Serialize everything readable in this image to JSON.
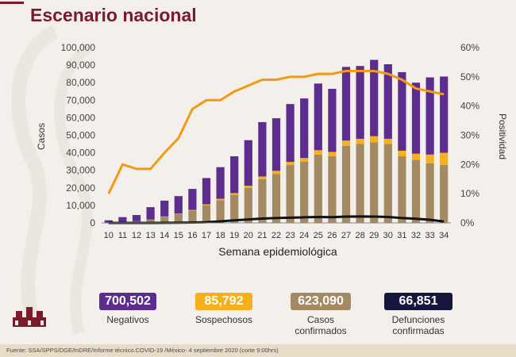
{
  "title": "Escenario nacional",
  "chart_data": {
    "type": "bar",
    "xlabel": "Semana epidemiológica",
    "ylabel_left": "Casos",
    "ylabel_right": "Positividad",
    "categories": [
      "10",
      "11",
      "12",
      "13",
      "14",
      "15",
      "16",
      "17",
      "18",
      "19",
      "20",
      "21",
      "22",
      "23",
      "24",
      "25",
      "26",
      "27",
      "28",
      "29",
      "30",
      "31",
      "32",
      "33",
      "34"
    ],
    "ylim": [
      0,
      100000
    ],
    "y2lim": [
      0,
      60
    ],
    "yticks": [
      "0",
      "10,000",
      "20,000",
      "30,000",
      "40,000",
      "50,000",
      "60,000",
      "70,000",
      "80,000",
      "90,000",
      "100,000"
    ],
    "y2ticks": [
      "0%",
      "10%",
      "20%",
      "30%",
      "40%",
      "50%",
      "60%"
    ],
    "series": [
      {
        "name": "Casos confirmados",
        "color": "#a38a63",
        "values": [
          200,
          500,
          1000,
          2000,
          3500,
          5000,
          7000,
          10000,
          13000,
          16000,
          20000,
          25000,
          28000,
          33000,
          35000,
          39000,
          38000,
          44000,
          45000,
          46000,
          45000,
          38000,
          36000,
          34000,
          33000
        ]
      },
      {
        "name": "Sospechosos",
        "color": "#f5b01c",
        "values": [
          0,
          0,
          0,
          0,
          200,
          300,
          400,
          600,
          800,
          1000,
          1200,
          1500,
          1700,
          1800,
          2000,
          2500,
          2500,
          3000,
          3000,
          3500,
          3000,
          3200,
          3500,
          5000,
          7000
        ]
      },
      {
        "name": "Negativos",
        "color": "#5c2c8e",
        "values": [
          1300,
          2800,
          3500,
          7000,
          9000,
          10000,
          12000,
          15000,
          18000,
          21000,
          26000,
          31000,
          30000,
          33000,
          34000,
          38000,
          36000,
          42000,
          41500,
          43500,
          42500,
          44800,
          40500,
          44000,
          43500
        ]
      },
      {
        "name": "Defunciones confirmadas",
        "color": "#111111",
        "values": [
          0,
          0,
          0,
          0,
          50,
          100,
          200,
          400,
          900,
          1500,
          2000,
          2500,
          2800,
          3000,
          3200,
          3400,
          3300,
          3600,
          3700,
          3600,
          3400,
          2800,
          2400,
          1800,
          800
        ]
      },
      {
        "name": "Positividad",
        "color": "#f39a13",
        "axis": "right",
        "values": [
          10,
          20,
          18.5,
          18.5,
          24,
          29,
          39,
          42,
          42,
          45,
          47,
          49,
          49,
          50,
          50,
          51,
          51,
          52,
          52,
          52,
          51,
          49,
          46,
          45,
          44
        ]
      }
    ]
  },
  "stats": [
    {
      "value": "700,502",
      "label": "Negativos",
      "color": "#5c2c8e"
    },
    {
      "value": "85,792",
      "label": "Sospechosos",
      "color": "#f5b01c"
    },
    {
      "value": "623,090",
      "label": "Casos confirmados",
      "color": "#a38a63"
    },
    {
      "value": "66,851",
      "label": "Defunciones confirmadas",
      "color": "#16163c"
    }
  ],
  "footer": "Fuente: SSA/SPPS/DGE/InDRE/Informe técnico.COVID-19 /México- 4 septiembre 2020 (corte 9:00hrs)"
}
